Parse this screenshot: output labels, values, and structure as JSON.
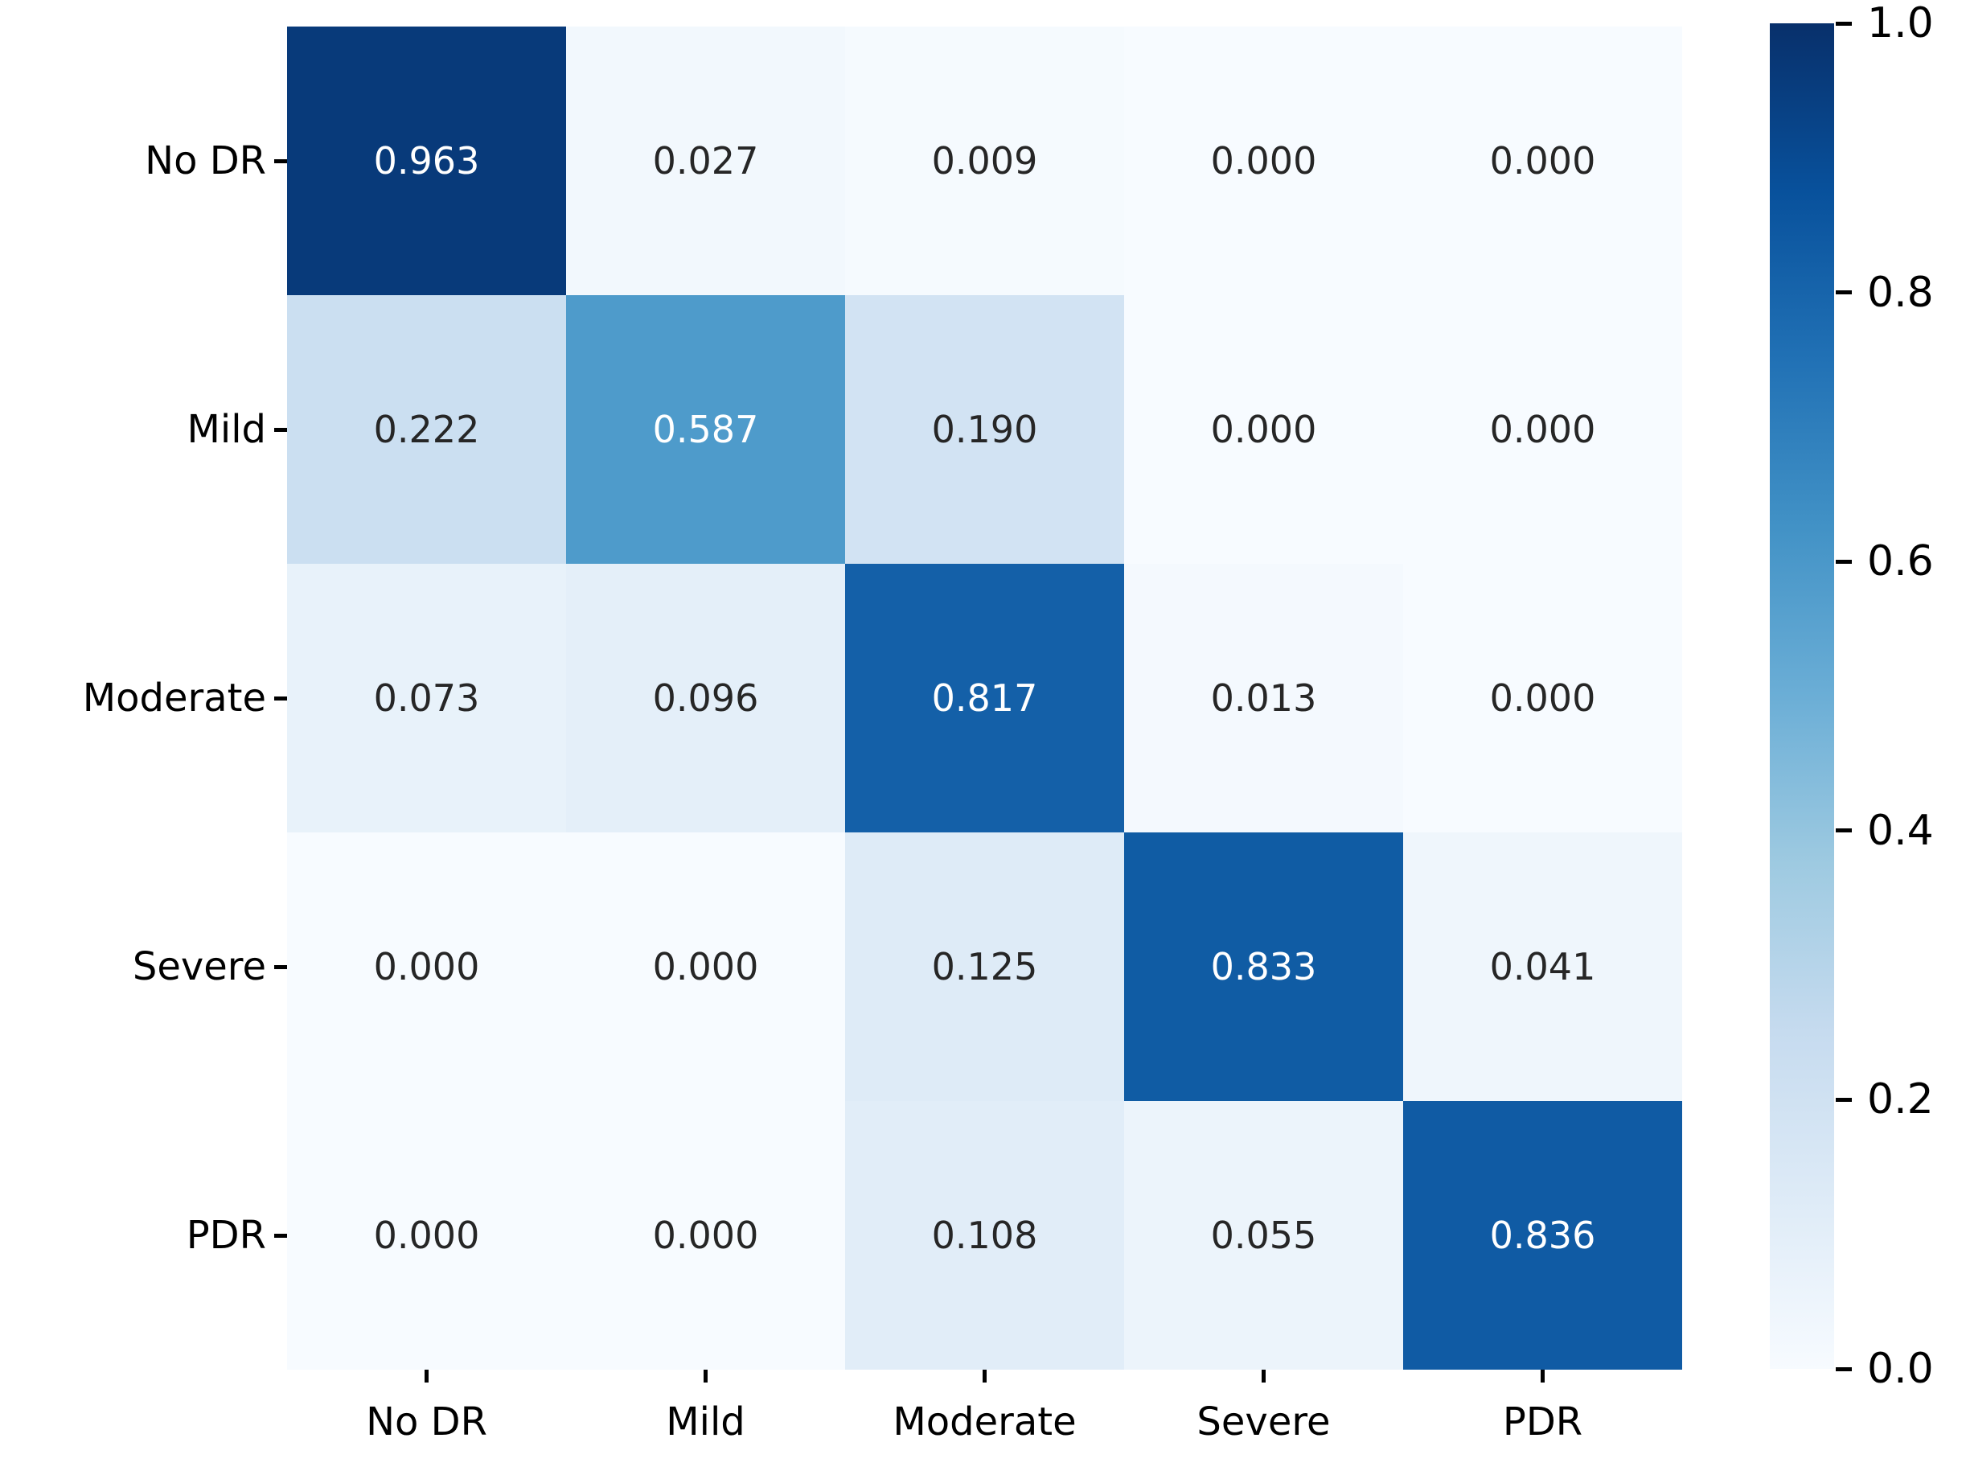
{
  "chart_data": {
    "type": "heatmap",
    "title": "",
    "xlabel": "",
    "ylabel": "",
    "x_categories": [
      "No DR",
      "Mild",
      "Moderate",
      "Severe",
      "PDR"
    ],
    "y_categories": [
      "No DR",
      "Mild",
      "Moderate",
      "Severe",
      "PDR"
    ],
    "matrix": [
      [
        0.963,
        0.027,
        0.009,
        0.0,
        0.0
      ],
      [
        0.222,
        0.587,
        0.19,
        0.0,
        0.0
      ],
      [
        0.073,
        0.096,
        0.817,
        0.013,
        0.0
      ],
      [
        0.0,
        0.0,
        0.125,
        0.833,
        0.041
      ],
      [
        0.0,
        0.0,
        0.108,
        0.055,
        0.836
      ]
    ],
    "value_decimals": 3,
    "vmin": 0.0,
    "vmax": 1.0,
    "grid": false,
    "legend_position": "right-colorbar",
    "colormap": "Blues",
    "colormap_stops": [
      {
        "pos": 0.0,
        "color": "#f7fbff"
      },
      {
        "pos": 0.125,
        "color": "#deebf7"
      },
      {
        "pos": 0.25,
        "color": "#c6dbef"
      },
      {
        "pos": 0.375,
        "color": "#9ecae1"
      },
      {
        "pos": 0.5,
        "color": "#6baed6"
      },
      {
        "pos": 0.625,
        "color": "#4292c6"
      },
      {
        "pos": 0.75,
        "color": "#2171b5"
      },
      {
        "pos": 0.875,
        "color": "#08519c"
      },
      {
        "pos": 1.0,
        "color": "#08306b"
      }
    ],
    "colorbar_ticks": [
      {
        "label": "1.0",
        "value": 1.0
      },
      {
        "label": "0.8",
        "value": 0.8
      },
      {
        "label": "0.6",
        "value": 0.6
      },
      {
        "label": "0.4",
        "value": 0.4
      },
      {
        "label": "0.2",
        "value": 0.2
      },
      {
        "label": "0.0",
        "value": 0.0
      }
    ],
    "colors": {
      "background": "#ffffff",
      "annotation_dark": "#262626",
      "annotation_light": "#ffffff",
      "tick": "#000000"
    }
  }
}
